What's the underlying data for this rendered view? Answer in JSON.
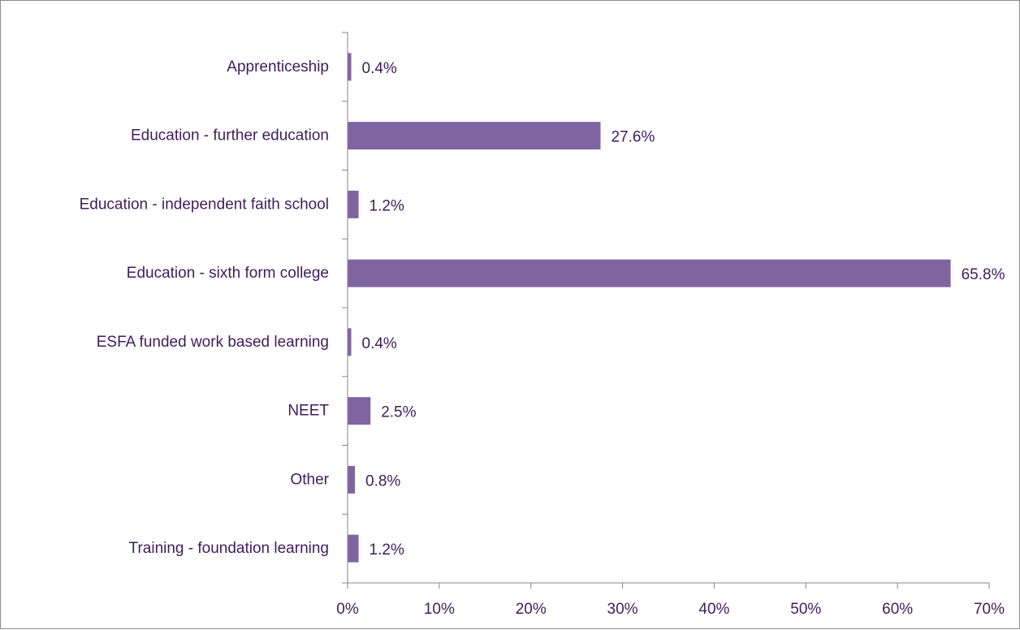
{
  "chart_data": {
    "type": "bar",
    "orientation": "horizontal",
    "categories": [
      "Apprenticeship",
      "Education - further education",
      "Education - independent faith school",
      "Education - sixth form college",
      "ESFA funded work based learning",
      "NEET",
      "Other",
      "Training - foundation learning"
    ],
    "values": [
      0.4,
      27.6,
      1.2,
      65.8,
      0.4,
      2.5,
      0.8,
      1.2
    ],
    "value_labels": [
      "0.4%",
      "27.6%",
      "1.2%",
      "65.8%",
      "0.4%",
      "2.5%",
      "0.8%",
      "1.2%"
    ],
    "xlim": [
      0,
      70
    ],
    "x_ticks": [
      0,
      10,
      20,
      30,
      40,
      50,
      60,
      70
    ],
    "x_tick_labels": [
      "0%",
      "10%",
      "20%",
      "30%",
      "40%",
      "50%",
      "60%",
      "70%"
    ],
    "title": "",
    "xlabel": "",
    "ylabel": "",
    "grid": false,
    "legend": "none",
    "colors": {
      "bar": "#8064a2",
      "text": "#3f1d5c",
      "axis": "#868686"
    }
  }
}
